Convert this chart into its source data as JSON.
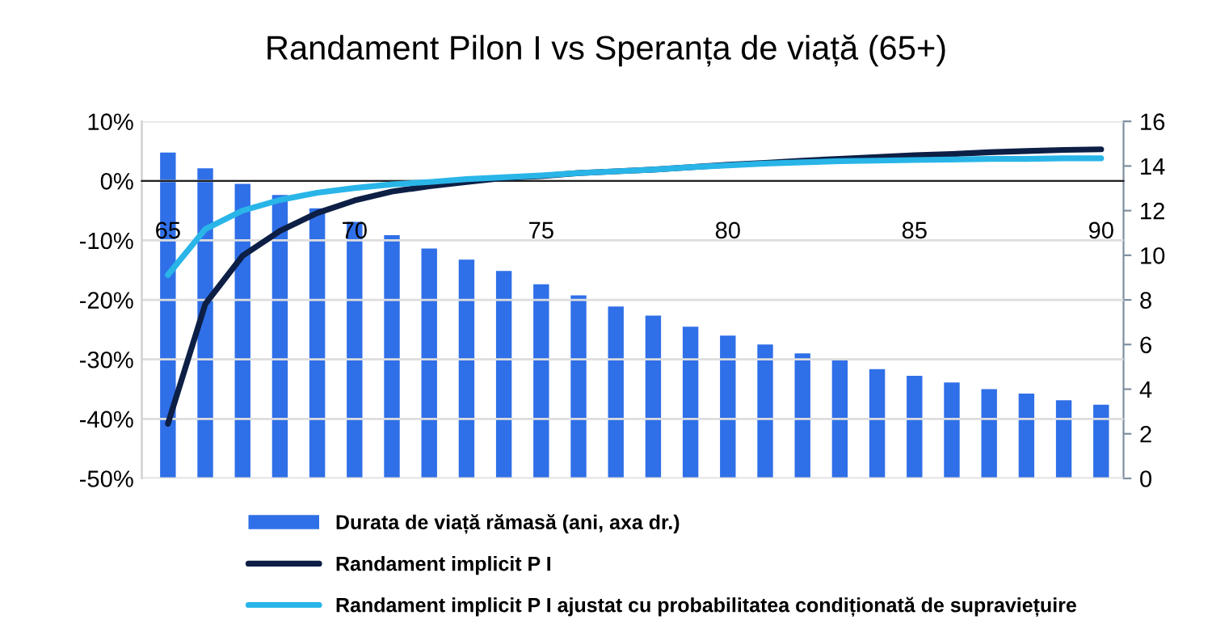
{
  "chart_data": {
    "type": "bar",
    "title": "Randament Pilon I vs Speranța de viață (65+)",
    "x": [
      65,
      66,
      67,
      68,
      69,
      70,
      71,
      72,
      73,
      74,
      75,
      76,
      77,
      78,
      79,
      80,
      81,
      82,
      83,
      84,
      85,
      86,
      87,
      88,
      89,
      90
    ],
    "series": [
      {
        "name": "Durata de viață rămasă (ani, axa dr.)",
        "axis": "y2",
        "color": "#2f6fe8",
        "values": [
          14.6,
          13.9,
          13.2,
          12.7,
          12.1,
          11.5,
          10.9,
          10.3,
          9.8,
          9.3,
          8.7,
          8.2,
          7.7,
          7.3,
          6.8,
          6.4,
          6.0,
          5.6,
          5.3,
          4.9,
          4.6,
          4.3,
          4.0,
          3.8,
          3.5,
          3.3
        ]
      },
      {
        "name": "Randament implicit P I",
        "type": "line",
        "color": "#0d1f45",
        "values": [
          -40.8,
          -20.7,
          -12.6,
          -8.4,
          -5.4,
          -3.3,
          -1.8,
          -0.9,
          -0.2,
          0.5,
          0.8,
          1.3,
          1.6,
          1.9,
          2.3,
          2.7,
          3.0,
          3.4,
          3.7,
          4.0,
          4.3,
          4.5,
          4.8,
          5.0,
          5.2,
          5.3
        ]
      },
      {
        "name": "Randament implicit P I ajustat cu probabilitatea condiționată de supraviețuire",
        "type": "line",
        "color": "#29b5e8",
        "values": [
          -15.8,
          -8.1,
          -5.0,
          -3.2,
          -2.0,
          -1.2,
          -0.6,
          -0.2,
          0.3,
          0.6,
          0.9,
          1.3,
          1.6,
          1.9,
          2.3,
          2.6,
          2.9,
          3.1,
          3.3,
          3.4,
          3.5,
          3.6,
          3.7,
          3.7,
          3.8,
          3.8
        ]
      }
    ],
    "xlim": [
      64.3,
      90.6
    ],
    "xticks": [
      65,
      70,
      75,
      80,
      85,
      90
    ],
    "ylim": [
      -50,
      10
    ],
    "yticks": [
      {
        "value": -50,
        "label": "-50%"
      },
      {
        "value": -40,
        "label": "-40%"
      },
      {
        "value": -30,
        "label": "-30%"
      },
      {
        "value": -20,
        "label": "-20%"
      },
      {
        "value": -10,
        "label": "-10%"
      },
      {
        "value": 0,
        "label": "0%"
      },
      {
        "value": 10,
        "label": "10%"
      }
    ],
    "y2lim": [
      0,
      16
    ],
    "y2ticks": [
      0,
      2,
      4,
      6,
      8,
      10,
      12,
      14,
      16
    ],
    "grid": "y",
    "legend": "bottom",
    "line_style": "solid",
    "marker": "none"
  }
}
